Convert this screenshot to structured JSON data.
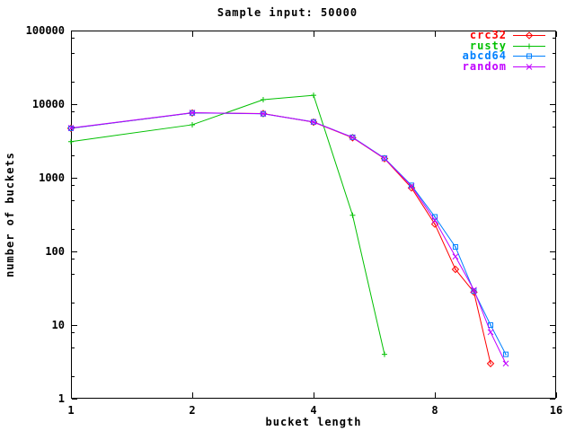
{
  "chart_data": {
    "type": "line",
    "title": "Sample input: 50000",
    "xlabel": "bucket length",
    "ylabel": "number of buckets",
    "x_scale": "log2",
    "y_scale": "log10",
    "xlim": [
      1,
      16
    ],
    "ylim": [
      1,
      100000
    ],
    "x_ticks": [
      1,
      2,
      4,
      8,
      16
    ],
    "y_ticks": [
      1,
      10,
      100,
      1000,
      10000,
      100000
    ],
    "y_minor_tick_multiples": [
      2,
      5,
      8
    ],
    "grid": false,
    "legend_position": "top-right-inside",
    "background_color": "#ffffff",
    "axis_color": "#000000",
    "series": [
      {
        "name": "crc32",
        "color": "#ff0000",
        "marker": "diamond",
        "points": [
          [
            1,
            4700
          ],
          [
            2,
            7600
          ],
          [
            3,
            7450
          ],
          [
            4,
            5700
          ],
          [
            5,
            3500
          ],
          [
            6,
            1820
          ],
          [
            7,
            730
          ],
          [
            8,
            235
          ],
          [
            9,
            57
          ],
          [
            10,
            28
          ],
          [
            11,
            3
          ]
        ]
      },
      {
        "name": "rusty",
        "color": "#00c000",
        "marker": "plus",
        "points": [
          [
            1,
            3100
          ],
          [
            2,
            5250
          ],
          [
            3,
            11500
          ],
          [
            4,
            13200
          ],
          [
            5,
            310
          ],
          [
            6,
            4
          ]
        ]
      },
      {
        "name": "abcd64",
        "color": "#0080ff",
        "marker": "square",
        "points": [
          [
            1,
            4700
          ],
          [
            2,
            7600
          ],
          [
            3,
            7400
          ],
          [
            4,
            5750
          ],
          [
            5,
            3550
          ],
          [
            6,
            1850
          ],
          [
            7,
            790
          ],
          [
            8,
            295
          ],
          [
            9,
            115
          ],
          [
            10,
            29
          ],
          [
            11,
            10
          ],
          [
            12,
            4
          ]
        ]
      },
      {
        "name": "random",
        "color": "#c000ff",
        "marker": "x",
        "points": [
          [
            1,
            4750
          ],
          [
            2,
            7650
          ],
          [
            3,
            7420
          ],
          [
            4,
            5720
          ],
          [
            5,
            3530
          ],
          [
            6,
            1830
          ],
          [
            7,
            770
          ],
          [
            8,
            265
          ],
          [
            9,
            85
          ],
          [
            10,
            30
          ],
          [
            11,
            8
          ],
          [
            12,
            3
          ]
        ]
      }
    ]
  }
}
